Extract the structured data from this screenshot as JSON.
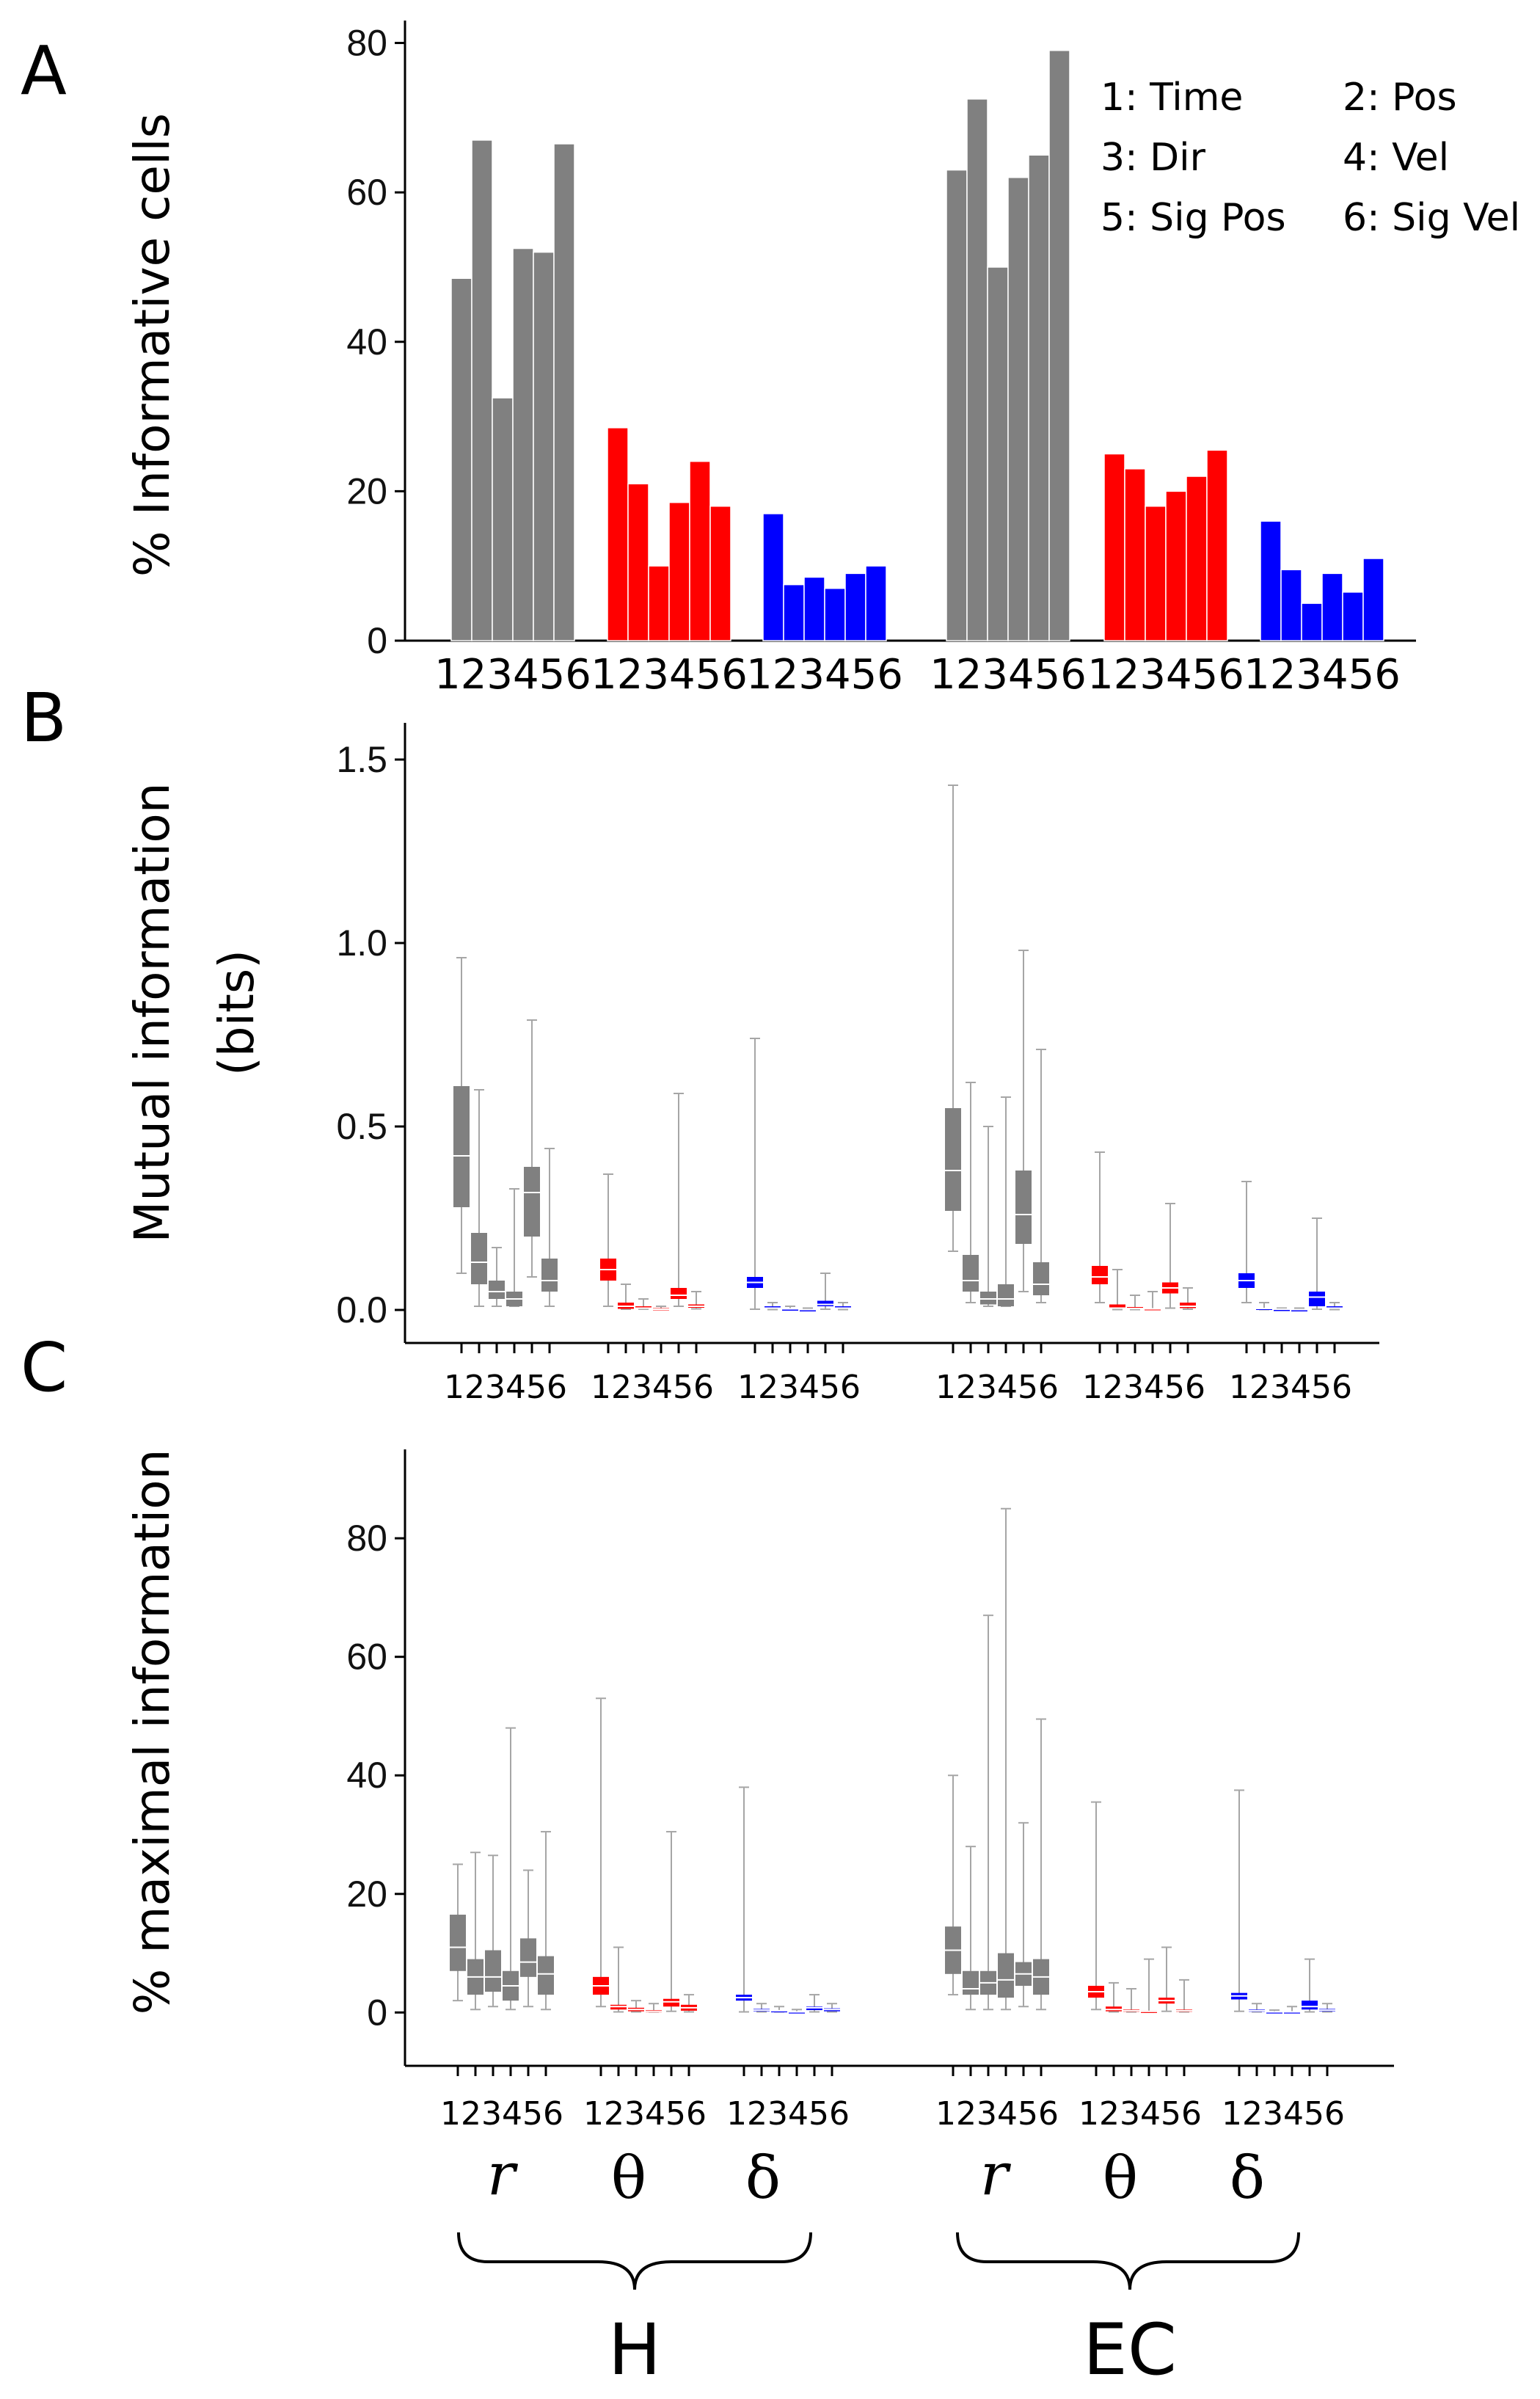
{
  "panels": {
    "A": {
      "letter": "A",
      "ylabel": "% Informative cells",
      "legend": [
        "1: Time",
        "2: Pos",
        "3: Dir",
        "4: Vel",
        "5: Sig Pos",
        "6: Sig Vel"
      ]
    },
    "B": {
      "letter": "B",
      "ylabel_line1": "Mutual  information",
      "ylabel_line2": "(bits)"
    },
    "C": {
      "letter": "C",
      "ylabel": "% maximal  information"
    }
  },
  "colors": {
    "r": "#808080",
    "theta": "#ff0000",
    "delta": "#0000ff",
    "whisker": "#a6a6a6"
  },
  "group_tick_label": "123456",
  "bands": [
    "r",
    "θ",
    "δ"
  ],
  "regions": [
    "H",
    "EC"
  ],
  "chart_data": [
    {
      "type": "bar",
      "title": "A",
      "ylabel": "% Informative cells",
      "ylim": [
        0,
        83
      ],
      "yticks": [
        0,
        20,
        40,
        60,
        80
      ],
      "categories": [
        "1",
        "2",
        "3",
        "4",
        "5",
        "6"
      ],
      "groups": [
        {
          "region": "H",
          "band": "r",
          "values": [
            48.5,
            67,
            32.5,
            52.5,
            52,
            66.5
          ]
        },
        {
          "region": "H",
          "band": "theta",
          "values": [
            28.5,
            21,
            10,
            18.5,
            24,
            18
          ]
        },
        {
          "region": "H",
          "band": "delta",
          "values": [
            17,
            7.5,
            8.5,
            7,
            9,
            10
          ]
        },
        {
          "region": "EC",
          "band": "r",
          "values": [
            63,
            72.5,
            50,
            62,
            65,
            79
          ]
        },
        {
          "region": "EC",
          "band": "theta",
          "values": [
            25,
            23,
            18,
            20,
            22,
            25.5
          ]
        },
        {
          "region": "EC",
          "band": "delta",
          "values": [
            16,
            9.5,
            5,
            9,
            6.5,
            11
          ]
        }
      ]
    },
    {
      "type": "box",
      "title": "B",
      "ylabel": "Mutual information (bits)",
      "ylim": [
        -0.09,
        1.6
      ],
      "yticks": [
        "0.0",
        "0.5",
        "1.0",
        "1.5"
      ],
      "categories": [
        "1",
        "2",
        "3",
        "4",
        "5",
        "6"
      ],
      "groups": [
        {
          "region": "H",
          "band": "r",
          "boxes": [
            [
              0.1,
              0.28,
              0.42,
              0.61,
              0.96
            ],
            [
              0.01,
              0.07,
              0.13,
              0.21,
              0.6
            ],
            [
              0.01,
              0.03,
              0.05,
              0.08,
              0.17
            ],
            [
              0.01,
              0.01,
              0.03,
              0.05,
              0.33
            ],
            [
              0.09,
              0.2,
              0.32,
              0.39,
              0.79
            ],
            [
              0.01,
              0.05,
              0.08,
              0.14,
              0.44
            ]
          ]
        },
        {
          "region": "H",
          "band": "theta",
          "boxes": [
            [
              0.01,
              0.08,
              0.11,
              0.14,
              0.37
            ],
            [
              0.002,
              0.003,
              0.01,
              0.02,
              0.07
            ],
            [
              0.002,
              0.003,
              0.005,
              0.01,
              0.03
            ],
            [
              0.001,
              0.001,
              0.002,
              0.005,
              0.01
            ],
            [
              0.01,
              0.03,
              0.04,
              0.06,
              0.59
            ],
            [
              0.003,
              0.006,
              0.01,
              0.015,
              0.05
            ]
          ]
        },
        {
          "region": "H",
          "band": "delta",
          "boxes": [
            [
              0.002,
              0.06,
              0.075,
              0.09,
              0.74
            ],
            [
              0.001,
              0.003,
              0.005,
              0.01,
              0.02
            ],
            [
              0.001,
              0.002,
              0.003,
              0.004,
              0.01
            ],
            [
              0.001,
              0.001,
              0.001,
              0.002,
              0.005
            ],
            [
              0.002,
              0.01,
              0.015,
              0.025,
              0.1
            ],
            [
              0.001,
              0.003,
              0.005,
              0.01,
              0.02
            ]
          ]
        },
        {
          "region": "EC",
          "band": "r",
          "boxes": [
            [
              0.16,
              0.27,
              0.38,
              0.55,
              1.43
            ],
            [
              0.02,
              0.05,
              0.08,
              0.15,
              0.62
            ],
            [
              0.01,
              0.015,
              0.03,
              0.05,
              0.5
            ],
            [
              0.01,
              0.01,
              0.03,
              0.07,
              0.58
            ],
            [
              0.05,
              0.18,
              0.26,
              0.38,
              0.98
            ],
            [
              0.02,
              0.04,
              0.07,
              0.13,
              0.71
            ]
          ]
        },
        {
          "region": "EC",
          "band": "theta",
          "boxes": [
            [
              0.02,
              0.07,
              0.09,
              0.12,
              0.43
            ],
            [
              0.001,
              0.003,
              0.005,
              0.015,
              0.11
            ],
            [
              0.001,
              0.002,
              0.004,
              0.008,
              0.04
            ],
            [
              0.001,
              0.002,
              0.003,
              0.005,
              0.05
            ],
            [
              0.005,
              0.045,
              0.06,
              0.075,
              0.29
            ],
            [
              0.002,
              0.005,
              0.01,
              0.02,
              0.06
            ]
          ]
        },
        {
          "region": "EC",
          "band": "delta",
          "boxes": [
            [
              0.02,
              0.06,
              0.08,
              0.1,
              0.35
            ],
            [
              0.001,
              0.002,
              0.004,
              0.006,
              0.02
            ],
            [
              0.001,
              0.002,
              0.002,
              0.003,
              0.005
            ],
            [
              0.001,
              0.001,
              0.001,
              0.002,
              0.005
            ],
            [
              0.002,
              0.01,
              0.035,
              0.05,
              0.25
            ],
            [
              0.001,
              0.003,
              0.005,
              0.01,
              0.02
            ]
          ]
        }
      ]
    },
    {
      "type": "box",
      "title": "C",
      "ylabel": "% maximal information",
      "ylim": [
        -9,
        95
      ],
      "yticks": [
        0,
        20,
        40,
        60,
        80
      ],
      "categories": [
        "1",
        "2",
        "3",
        "4",
        "5",
        "6"
      ],
      "groups": [
        {
          "region": "H",
          "band": "r",
          "boxes": [
            [
              2,
              7,
              11,
              16.5,
              25
            ],
            [
              0.5,
              3,
              6,
              9,
              27
            ],
            [
              1,
              3.5,
              6,
              10.5,
              26.5
            ],
            [
              0.5,
              2,
              4.5,
              7,
              48
            ],
            [
              1,
              6,
              8.5,
              12.5,
              24
            ],
            [
              0.5,
              3,
              6.5,
              9.5,
              30.5
            ]
          ]
        },
        {
          "region": "H",
          "band": "theta",
          "boxes": [
            [
              1,
              3,
              4.5,
              6,
              53
            ],
            [
              0.1,
              0.5,
              1,
              1.3,
              11
            ],
            [
              0.1,
              0.2,
              0.5,
              0.8,
              2
            ],
            [
              0.1,
              0.1,
              0.2,
              0.4,
              1.5
            ],
            [
              0.2,
              1,
              1.8,
              2.3,
              30.5
            ],
            [
              0.1,
              0.3,
              0.8,
              1.3,
              3
            ]
          ]
        },
        {
          "region": "H",
          "band": "delta",
          "boxes": [
            [
              0.1,
              2,
              2.5,
              3,
              38
            ],
            [
              0.1,
              0.2,
              0.4,
              0.6,
              1.5
            ],
            [
              0.1,
              0.1,
              0.3,
              0.4,
              1
            ],
            [
              0.05,
              0.1,
              0.1,
              0.2,
              0.5
            ],
            [
              0.1,
              0.4,
              0.8,
              1,
              3
            ],
            [
              0.1,
              0.2,
              0.5,
              0.7,
              1.5
            ]
          ]
        },
        {
          "region": "EC",
          "band": "r",
          "boxes": [
            [
              3,
              6.5,
              10.5,
              14.5,
              40
            ],
            [
              0.5,
              3,
              4,
              7,
              28
            ],
            [
              0.5,
              3,
              5,
              7,
              67
            ],
            [
              0.5,
              2.5,
              5.5,
              10,
              85
            ],
            [
              1,
              4.5,
              6.5,
              8.5,
              32
            ],
            [
              0.5,
              3,
              6,
              9,
              49.5
            ]
          ]
        },
        {
          "region": "EC",
          "band": "theta",
          "boxes": [
            [
              0.5,
              2.5,
              3.5,
              4.5,
              35.5
            ],
            [
              0.1,
              0.2,
              0.5,
              1,
              5
            ],
            [
              0.1,
              0.2,
              0.3,
              0.5,
              4
            ],
            [
              0.05,
              0.1,
              0.2,
              0.3,
              9
            ],
            [
              0.2,
              1.5,
              2,
              2.5,
              11
            ],
            [
              0.1,
              0.2,
              0.3,
              0.5,
              5.5
            ]
          ]
        },
        {
          "region": "EC",
          "band": "delta",
          "boxes": [
            [
              0.2,
              2.2,
              2.8,
              3.3,
              37.5
            ],
            [
              0.1,
              0.2,
              0.3,
              0.5,
              1.5
            ],
            [
              0.05,
              0.1,
              0.1,
              0.2,
              0.4
            ],
            [
              0.05,
              0.1,
              0.1,
              0.2,
              1
            ],
            [
              0.1,
              0.5,
              1,
              2,
              9
            ],
            [
              0.1,
              0.2,
              0.4,
              0.6,
              1.5
            ]
          ]
        }
      ]
    }
  ]
}
